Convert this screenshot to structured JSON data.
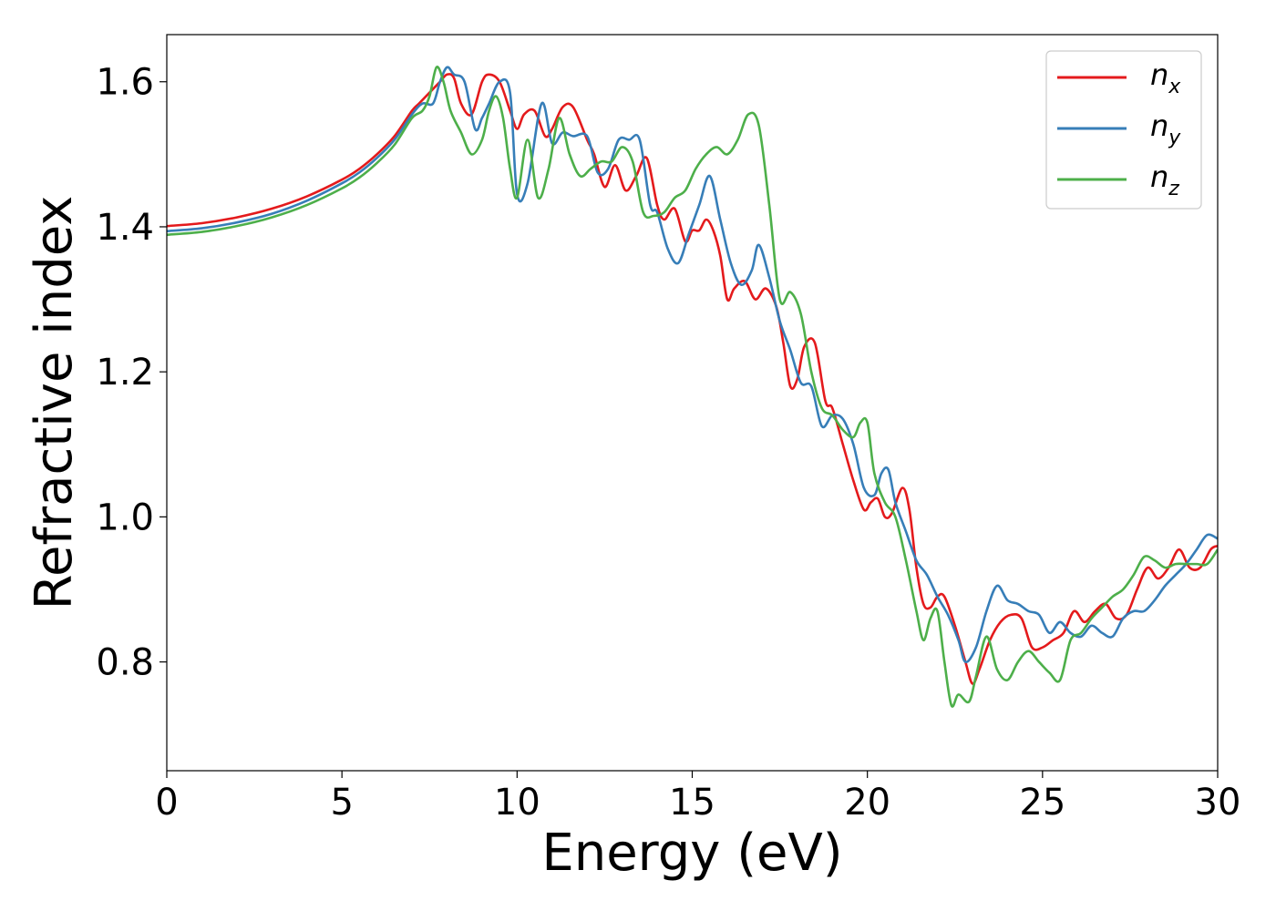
{
  "chart_data": {
    "type": "line",
    "xlabel": "Energy (eV)",
    "ylabel": "Refractive index",
    "xlim": [
      0,
      30
    ],
    "ylim": [
      0.65,
      1.665
    ],
    "xticks": [
      0,
      5,
      10,
      15,
      20,
      25,
      30
    ],
    "xtick_labels": [
      "0",
      "5",
      "10",
      "15",
      "20",
      "25",
      "30"
    ],
    "yticks": [
      0.8,
      1.0,
      1.2,
      1.4,
      1.6
    ],
    "ytick_labels": [
      "0.8",
      "1.0",
      "1.2",
      "1.4",
      "1.6"
    ],
    "grid": false,
    "legend_position": "top-right",
    "series": [
      {
        "name": "n_x",
        "legend_base": "n",
        "legend_sub": "x",
        "color": "#e41a1c",
        "x": [
          0,
          1,
          2,
          3,
          4,
          5,
          5.5,
          6,
          6.5,
          7,
          7.2,
          7.5,
          7.8,
          8.0,
          8.2,
          8.4,
          8.7,
          9.0,
          9.2,
          9.5,
          9.8,
          10.0,
          10.2,
          10.5,
          10.8,
          11.0,
          11.3,
          11.6,
          12.0,
          12.2,
          12.5,
          12.8,
          13.1,
          13.4,
          13.7,
          14.0,
          14.2,
          14.5,
          14.8,
          15.0,
          15.2,
          15.4,
          15.6,
          15.8,
          16.0,
          16.2,
          16.5,
          16.8,
          17.1,
          17.4,
          17.6,
          17.8,
          18.0,
          18.2,
          18.5,
          18.8,
          19.0,
          19.3,
          19.6,
          19.9,
          20.1,
          20.3,
          20.5,
          20.7,
          21.0,
          21.2,
          21.4,
          21.6,
          21.8,
          22.0,
          22.2,
          22.5,
          22.8,
          23.0,
          23.2,
          23.5,
          23.8,
          24.1,
          24.4,
          24.7,
          25.0,
          25.3,
          25.6,
          25.9,
          26.2,
          26.5,
          26.8,
          27.1,
          27.4,
          27.7,
          28.0,
          28.3,
          28.6,
          28.9,
          29.2,
          29.5,
          29.8,
          30.0
        ],
        "y": [
          1.401,
          1.405,
          1.413,
          1.425,
          1.442,
          1.465,
          1.48,
          1.5,
          1.525,
          1.56,
          1.57,
          1.585,
          1.6,
          1.61,
          1.605,
          1.57,
          1.555,
          1.6,
          1.61,
          1.6,
          1.56,
          1.535,
          1.555,
          1.56,
          1.525,
          1.535,
          1.565,
          1.565,
          1.52,
          1.5,
          1.455,
          1.485,
          1.45,
          1.47,
          1.495,
          1.43,
          1.41,
          1.425,
          1.38,
          1.395,
          1.395,
          1.41,
          1.395,
          1.36,
          1.3,
          1.315,
          1.325,
          1.3,
          1.315,
          1.29,
          1.24,
          1.18,
          1.19,
          1.235,
          1.24,
          1.16,
          1.15,
          1.1,
          1.05,
          1.01,
          1.02,
          1.025,
          1.0,
          1.005,
          1.04,
          1.01,
          0.93,
          0.88,
          0.875,
          0.89,
          0.89,
          0.85,
          0.8,
          0.77,
          0.79,
          0.83,
          0.855,
          0.865,
          0.86,
          0.82,
          0.82,
          0.83,
          0.84,
          0.87,
          0.855,
          0.87,
          0.88,
          0.86,
          0.865,
          0.9,
          0.93,
          0.915,
          0.93,
          0.955,
          0.93,
          0.93,
          0.955,
          0.96
        ]
      },
      {
        "name": "n_y",
        "legend_base": "n",
        "legend_sub": "y",
        "color": "#377eb8",
        "x": [
          0,
          1,
          2,
          3,
          4,
          5,
          5.5,
          6,
          6.5,
          7,
          7.3,
          7.6,
          7.8,
          8.0,
          8.2,
          8.5,
          8.8,
          9.0,
          9.2,
          9.5,
          9.8,
          10.0,
          10.3,
          10.7,
          11.0,
          11.3,
          11.6,
          12.0,
          12.3,
          12.6,
          12.9,
          13.2,
          13.5,
          13.8,
          14.0,
          14.3,
          14.6,
          14.9,
          15.2,
          15.5,
          15.8,
          16.1,
          16.4,
          16.7,
          16.9,
          17.2,
          17.5,
          17.8,
          18.1,
          18.4,
          18.7,
          19.0,
          19.3,
          19.6,
          19.9,
          20.2,
          20.4,
          20.6,
          20.8,
          21.1,
          21.4,
          21.7,
          22.0,
          22.3,
          22.6,
          22.8,
          23.1,
          23.4,
          23.7,
          24.0,
          24.3,
          24.6,
          24.9,
          25.2,
          25.5,
          25.8,
          26.1,
          26.4,
          26.7,
          27.0,
          27.3,
          27.6,
          27.9,
          28.2,
          28.5,
          28.8,
          29.1,
          29.4,
          29.7,
          30.0
        ],
        "y": [
          1.394,
          1.398,
          1.406,
          1.418,
          1.436,
          1.46,
          1.475,
          1.495,
          1.52,
          1.555,
          1.57,
          1.57,
          1.6,
          1.62,
          1.61,
          1.6,
          1.535,
          1.55,
          1.57,
          1.6,
          1.585,
          1.445,
          1.46,
          1.57,
          1.515,
          1.53,
          1.525,
          1.525,
          1.475,
          1.48,
          1.52,
          1.52,
          1.52,
          1.43,
          1.42,
          1.37,
          1.35,
          1.39,
          1.43,
          1.47,
          1.41,
          1.35,
          1.32,
          1.34,
          1.375,
          1.33,
          1.27,
          1.23,
          1.185,
          1.18,
          1.125,
          1.14,
          1.135,
          1.1,
          1.04,
          1.03,
          1.06,
          1.065,
          1.02,
          0.98,
          0.94,
          0.92,
          0.89,
          0.865,
          0.83,
          0.8,
          0.82,
          0.87,
          0.905,
          0.885,
          0.88,
          0.87,
          0.865,
          0.84,
          0.855,
          0.84,
          0.835,
          0.85,
          0.84,
          0.835,
          0.86,
          0.87,
          0.87,
          0.885,
          0.905,
          0.92,
          0.935,
          0.955,
          0.975,
          0.97
        ]
      },
      {
        "name": "n_z",
        "legend_base": "n",
        "legend_sub": "z",
        "color": "#4daf4a",
        "x": [
          0,
          1,
          2,
          3,
          4,
          5,
          5.5,
          6,
          6.5,
          7,
          7.3,
          7.5,
          7.7,
          7.9,
          8.1,
          8.4,
          8.7,
          9.0,
          9.2,
          9.4,
          9.6,
          9.8,
          10.0,
          10.3,
          10.6,
          10.9,
          11.2,
          11.5,
          11.8,
          12.1,
          12.4,
          12.7,
          13.0,
          13.3,
          13.6,
          13.9,
          14.2,
          14.5,
          14.8,
          15.1,
          15.4,
          15.7,
          16.0,
          16.3,
          16.6,
          16.9,
          17.2,
          17.5,
          17.8,
          18.1,
          18.4,
          18.7,
          19.0,
          19.3,
          19.6,
          19.8,
          20.0,
          20.2,
          20.5,
          20.8,
          21.1,
          21.4,
          21.6,
          21.8,
          22.0,
          22.2,
          22.4,
          22.6,
          22.9,
          23.1,
          23.4,
          23.7,
          24.0,
          24.3,
          24.6,
          24.9,
          25.2,
          25.5,
          25.8,
          26.1,
          26.4,
          26.7,
          27.0,
          27.3,
          27.6,
          27.9,
          28.2,
          28.5,
          28.8,
          29.1,
          29.4,
          29.7,
          30.0
        ],
        "y": [
          1.389,
          1.393,
          1.401,
          1.413,
          1.43,
          1.453,
          1.468,
          1.488,
          1.513,
          1.55,
          1.56,
          1.58,
          1.62,
          1.6,
          1.56,
          1.53,
          1.5,
          1.52,
          1.56,
          1.58,
          1.55,
          1.48,
          1.44,
          1.52,
          1.44,
          1.48,
          1.55,
          1.5,
          1.47,
          1.48,
          1.49,
          1.49,
          1.51,
          1.49,
          1.42,
          1.415,
          1.42,
          1.44,
          1.45,
          1.48,
          1.5,
          1.51,
          1.5,
          1.52,
          1.555,
          1.54,
          1.43,
          1.3,
          1.31,
          1.28,
          1.2,
          1.15,
          1.14,
          1.12,
          1.11,
          1.13,
          1.13,
          1.06,
          1.02,
          1.0,
          0.94,
          0.87,
          0.83,
          0.86,
          0.87,
          0.8,
          0.74,
          0.755,
          0.745,
          0.78,
          0.835,
          0.79,
          0.775,
          0.8,
          0.815,
          0.8,
          0.785,
          0.775,
          0.83,
          0.84,
          0.86,
          0.875,
          0.89,
          0.9,
          0.92,
          0.945,
          0.94,
          0.93,
          0.935,
          0.935,
          0.935,
          0.935,
          0.955
        ]
      }
    ]
  }
}
